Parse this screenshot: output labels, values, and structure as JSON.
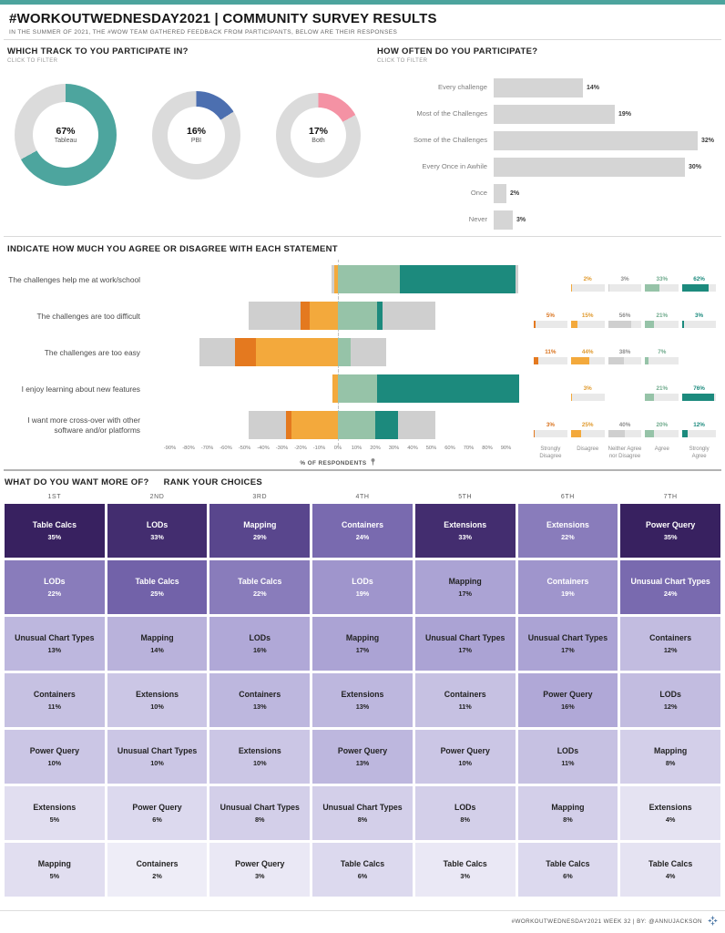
{
  "header": {
    "title": "#WORKOUTWEDNESDAY2021 | COMMUNITY SURVEY RESULTS",
    "subtitle": "IN THE SUMMER OF 2021, THE #WOW TEAM GATHERED FEEDBACK FROM PARTICIPANTS, BELOW ARE THEIR RESPONSES"
  },
  "hints": {
    "filter": "CLICK TO FILTER"
  },
  "chart_data": [
    {
      "id": "track_donuts",
      "type": "pie",
      "title": "WHICH TRACK TO YOU PARTICIPATE IN?",
      "categories": [
        "Tableau",
        "PBI",
        "Both"
      ],
      "values": [
        67,
        16,
        17
      ],
      "value_labels": [
        "67%",
        "16%",
        "17%"
      ],
      "colors": [
        "#4DA59E",
        "#4C6FB0",
        "#F492A4"
      ],
      "track_color": "#DBDBDB",
      "layout": "three donut charts, filled slice starts at 12 o'clock clockwise"
    },
    {
      "id": "participation",
      "type": "bar",
      "orientation": "horizontal",
      "title": "HOW OFTEN DO YOU PARTICIPATE?",
      "categories": [
        "Every challenge",
        "Most of the Challenges",
        "Some of the Challenges",
        "Every Once in Awhile",
        "Once",
        "Never"
      ],
      "values": [
        14,
        19,
        32,
        30,
        2,
        3
      ],
      "unit": "%",
      "bar_color": "#D5D5D5",
      "xlim": [
        0,
        35
      ],
      "grid": false
    },
    {
      "id": "likert",
      "type": "bar",
      "subtype": "diverging-stacked",
      "title": "INDICATE HOW MUCH YOU AGREE OR DISAGREE WITH EACH STATEMENT",
      "xlabel": "% OF RESPONDENTS",
      "xlim": [
        -100,
        100
      ],
      "ticks": {
        "start": -90,
        "end": 90,
        "step": 10,
        "suffix": "%"
      },
      "categories": [
        "The challenges help me at work/school",
        "The challenges are too difficult",
        "The challenges are too easy",
        "I enjoy learning about new features",
        "I want more cross-over with other software and/or platforms"
      ],
      "series": [
        {
          "name": "Strongly Disagree",
          "color": "#E4791F",
          "label_color": "#D9731E",
          "values": [
            0,
            5,
            11,
            0,
            3
          ]
        },
        {
          "name": "Disagree",
          "color": "#F3A93C",
          "label_color": "#E09A2E",
          "values": [
            2,
            15,
            44,
            3,
            25
          ]
        },
        {
          "name": "Neither Agree nor Disagree",
          "color": "#CFCFCF",
          "label_color": "#8C8C8C",
          "values": [
            3,
            56,
            38,
            0,
            40
          ]
        },
        {
          "name": "Agree",
          "color": "#96C3A8",
          "label_color": "#6FAA8C",
          "values": [
            33,
            21,
            7,
            21,
            20
          ]
        },
        {
          "name": "Strongly Agree",
          "color": "#1C8A7D",
          "label_color": "#1B8A7D",
          "values": [
            62,
            3,
            0,
            76,
            12
          ]
        }
      ],
      "note": "neutral category is split half to each outer end of the diverging bar"
    },
    {
      "id": "rank",
      "type": "heatmap",
      "title": "WHAT DO YOU WANT MORE OF?",
      "subtitle": "RANK YOUR CHOICES",
      "color_scale": {
        "stops": [
          {
            "value": 2,
            "color": "#EEEDF7"
          },
          {
            "value": 18,
            "color": "#A79ED2"
          },
          {
            "value": 26,
            "color": "#6A59A3"
          },
          {
            "value": 35,
            "color": "#382160"
          }
        ],
        "white_text_min": 19
      },
      "columns": [
        {
          "header": "1ST",
          "items": [
            {
              "label": "Table Calcs",
              "pct": 35
            },
            {
              "label": "LODs",
              "pct": 22
            },
            {
              "label": "Unusual Chart Types",
              "pct": 13
            },
            {
              "label": "Containers",
              "pct": 11
            },
            {
              "label": "Power Query",
              "pct": 10
            },
            {
              "label": "Extensions",
              "pct": 5
            },
            {
              "label": "Mapping",
              "pct": 5
            }
          ]
        },
        {
          "header": "2ND",
          "items": [
            {
              "label": "LODs",
              "pct": 33
            },
            {
              "label": "Table Calcs",
              "pct": 25
            },
            {
              "label": "Mapping",
              "pct": 14
            },
            {
              "label": "Extensions",
              "pct": 10
            },
            {
              "label": "Unusual Chart Types",
              "pct": 10
            },
            {
              "label": "Power Query",
              "pct": 6
            },
            {
              "label": "Containers",
              "pct": 2
            }
          ]
        },
        {
          "header": "3RD",
          "items": [
            {
              "label": "Mapping",
              "pct": 29
            },
            {
              "label": "Table Calcs",
              "pct": 22
            },
            {
              "label": "LODs",
              "pct": 16
            },
            {
              "label": "Containers",
              "pct": 13
            },
            {
              "label": "Extensions",
              "pct": 10
            },
            {
              "label": "Unusual Chart Types",
              "pct": 8
            },
            {
              "label": "Power Query",
              "pct": 3
            }
          ]
        },
        {
          "header": "4TH",
          "items": [
            {
              "label": "Containers",
              "pct": 24
            },
            {
              "label": "LODs",
              "pct": 19
            },
            {
              "label": "Mapping",
              "pct": 17
            },
            {
              "label": "Extensions",
              "pct": 13
            },
            {
              "label": "Power Query",
              "pct": 13
            },
            {
              "label": "Unusual Chart Types",
              "pct": 8
            },
            {
              "label": "Table Calcs",
              "pct": 6
            }
          ]
        },
        {
          "header": "5TH",
          "items": [
            {
              "label": "Extensions",
              "pct": 33
            },
            {
              "label": "Mapping",
              "pct": 17
            },
            {
              "label": "Unusual Chart Types",
              "pct": 17
            },
            {
              "label": "Containers",
              "pct": 11
            },
            {
              "label": "Power Query",
              "pct": 10
            },
            {
              "label": "LODs",
              "pct": 8
            },
            {
              "label": "Table Calcs",
              "pct": 3
            }
          ]
        },
        {
          "header": "6TH",
          "items": [
            {
              "label": "Extensions",
              "pct": 22
            },
            {
              "label": "Containers",
              "pct": 19
            },
            {
              "label": "Unusual Chart Types",
              "pct": 17
            },
            {
              "label": "Power Query",
              "pct": 16
            },
            {
              "label": "LODs",
              "pct": 11
            },
            {
              "label": "Mapping",
              "pct": 8
            },
            {
              "label": "Table Calcs",
              "pct": 6
            }
          ]
        },
        {
          "header": "7TH",
          "items": [
            {
              "label": "Power Query",
              "pct": 35
            },
            {
              "label": "Unusual Chart Types",
              "pct": 24
            },
            {
              "label": "Containers",
              "pct": 12
            },
            {
              "label": "LODs",
              "pct": 12
            },
            {
              "label": "Mapping",
              "pct": 8
            },
            {
              "label": "Extensions",
              "pct": 4
            },
            {
              "label": "Table Calcs",
              "pct": 4
            }
          ]
        }
      ]
    }
  ],
  "footer": {
    "credit": "#WORKOUTWEDNESDAY2021 WEEK 32 | BY: @ANNUJACKSON"
  }
}
